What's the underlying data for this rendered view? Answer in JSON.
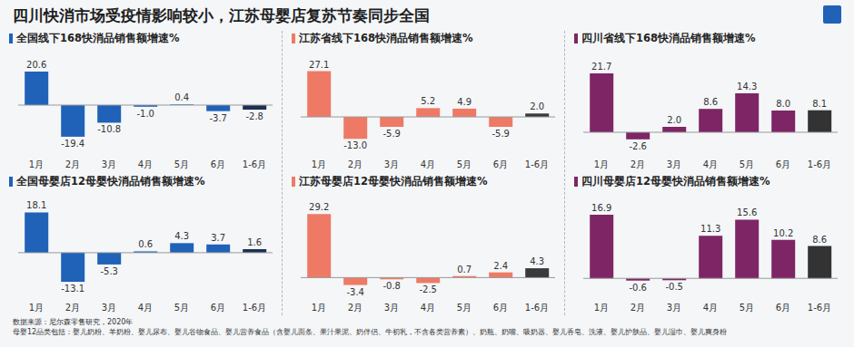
{
  "title": "四川快消市场受疫情影响较小，江苏母婴店复苏节奏同步全国",
  "chart_data": [
    {
      "type": "bar",
      "title": "全国线下168快消品销售额增速%",
      "categories": [
        "1月",
        "2月",
        "3月",
        "4月",
        "5月",
        "6月",
        "1-6月"
      ],
      "values": [
        20.6,
        -19.4,
        -10.8,
        -1.0,
        0.4,
        -3.7,
        -2.8
      ],
      "value_labels": [
        "20.6",
        "-19.4",
        "-10.8",
        "-1.0",
        "0.4",
        "-3.7",
        "-2.8"
      ],
      "colors": [
        "#1f62b8",
        "#1f62b8",
        "#1f62b8",
        "#1f62b8",
        "#1f62b8",
        "#1f62b8",
        "#1c2f55"
      ],
      "ylim": [
        -30,
        30
      ],
      "data_labels": true,
      "tick_labels": "x"
    },
    {
      "type": "bar",
      "title": "江苏省线下168快消品销售额增速%",
      "categories": [
        "1月",
        "2月",
        "3月",
        "4月",
        "5月",
        "6月",
        "1-6月"
      ],
      "values": [
        27.1,
        -13.0,
        -5.9,
        5.2,
        4.9,
        -5.9,
        2.0
      ],
      "value_labels": [
        "27.1",
        "-13.0",
        "-5.9",
        "5.2",
        "4.9",
        "-5.9",
        "2.0"
      ],
      "colors": [
        "#ee7a66",
        "#ee7a66",
        "#ee7a66",
        "#ee7a66",
        "#ee7a66",
        "#ee7a66",
        "#3a3a3a"
      ],
      "ylim": [
        -22,
        36
      ],
      "data_labels": true,
      "tick_labels": "x"
    },
    {
      "type": "bar",
      "title": "四川省线下168快消品销售额增速%",
      "categories": [
        "1月",
        "2月",
        "3月",
        "4月",
        "5月",
        "6月",
        "1-6月"
      ],
      "values": [
        21.7,
        -2.6,
        2.0,
        8.6,
        14.3,
        8.0,
        8.1
      ],
      "value_labels": [
        "21.7",
        "-2.6",
        "2.0",
        "8.6",
        "14.3",
        "8.0",
        "8.1"
      ],
      "colors": [
        "#7e2565",
        "#7e2565",
        "#7e2565",
        "#7e2565",
        "#7e2565",
        "#7e2565",
        "#333333"
      ],
      "ylim": [
        -8,
        28
      ],
      "data_labels": true,
      "tick_labels": "x"
    },
    {
      "type": "bar",
      "title": "全国母婴店12母婴快消品销售额增速%",
      "categories": [
        "1月",
        "2月",
        "3月",
        "4月",
        "5月",
        "6月",
        "1-6月"
      ],
      "values": [
        18.1,
        -13.1,
        -5.3,
        0.6,
        4.3,
        3.7,
        1.6
      ],
      "value_labels": [
        "18.1",
        "-13.1",
        "-5.3",
        "0.6",
        "4.3",
        "3.7",
        "1.6"
      ],
      "colors": [
        "#1f62b8",
        "#1f62b8",
        "#1f62b8",
        "#1f62b8",
        "#1f62b8",
        "#1f62b8",
        "#1c2f55"
      ],
      "ylim": [
        -20,
        24
      ],
      "data_labels": true,
      "tick_labels": "x"
    },
    {
      "type": "bar",
      "title": "江苏母婴店12母婴快消品销售额增速%",
      "categories": [
        "1月",
        "2月",
        "3月",
        "4月",
        "5月",
        "6月",
        "1-6月"
      ],
      "values": [
        29.2,
        -3.4,
        -0.8,
        -2.5,
        0.7,
        2.4,
        4.3
      ],
      "value_labels": [
        "29.2",
        "-3.4",
        "-0.8",
        "-2.5",
        "0.7",
        "2.4",
        "4.3"
      ],
      "colors": [
        "#ee7a66",
        "#ee7a66",
        "#ee7a66",
        "#ee7a66",
        "#ee7a66",
        "#ee7a66",
        "#3a3a3a"
      ],
      "ylim": [
        -9,
        36
      ],
      "data_labels": true,
      "tick_labels": "x"
    },
    {
      "type": "bar",
      "title": "四川母婴店12母婴快消品销售额增速%",
      "categories": [
        "1月",
        "2月",
        "3月",
        "4月",
        "5月",
        "6月",
        "1-6月"
      ],
      "values": [
        16.9,
        -0.6,
        -0.5,
        11.3,
        15.6,
        10.2,
        8.6
      ],
      "value_labels": [
        "16.9",
        "-0.6",
        "-0.5",
        "11.3",
        "15.6",
        "10.2",
        "8.6"
      ],
      "colors": [
        "#7e2565",
        "#7e2565",
        "#7e2565",
        "#7e2565",
        "#7e2565",
        "#7e2565",
        "#333333"
      ],
      "ylim": [
        -5,
        21
      ],
      "data_labels": true,
      "tick_labels": "x"
    }
  ],
  "source": "数据来源：尼尔森零售研究，2020年",
  "note": "母婴12品类包括：婴儿奶粉、羊奶粉、婴儿尿布、婴儿谷物食品、婴儿营养食品（含婴儿面条、果汁果泥、奶伴侣、牛初乳，不含各类营养素）、奶瓶、奶嘴、吸奶器、婴儿香皂、洗液、婴儿护肤品、婴儿湿巾、婴儿爽身粉"
}
